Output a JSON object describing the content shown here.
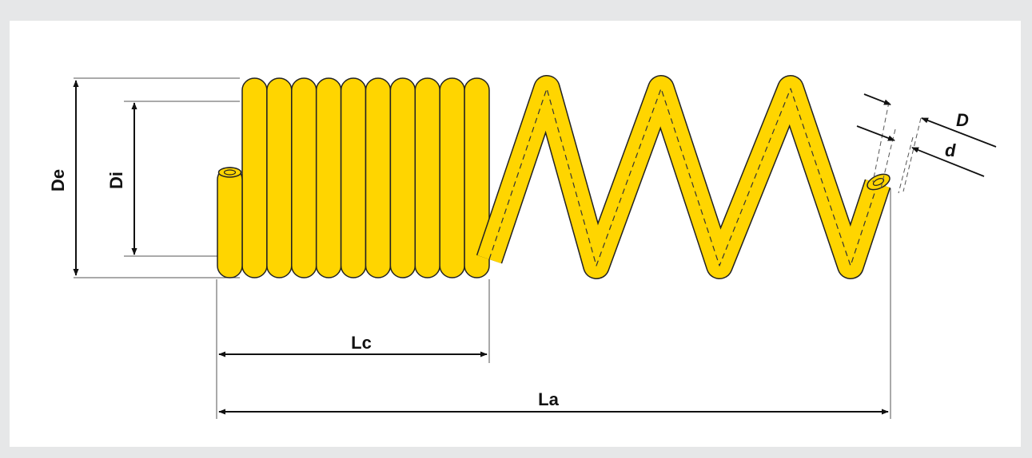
{
  "labels": {
    "outer_diameter": "De",
    "inner_diameter": "Di",
    "coiled_length": "Lc",
    "total_length": "La",
    "coil_diameter": "D",
    "wire_diameter": "d"
  },
  "colors": {
    "page_background": "#e6e7e8",
    "panel_background": "#ffffff",
    "spring_fill": "#ffd500",
    "outline": "#222222",
    "dimension_line": "#111111"
  },
  "spring": {
    "closed_turns": 10,
    "open_peaks": 3,
    "open_valleys": 3
  }
}
